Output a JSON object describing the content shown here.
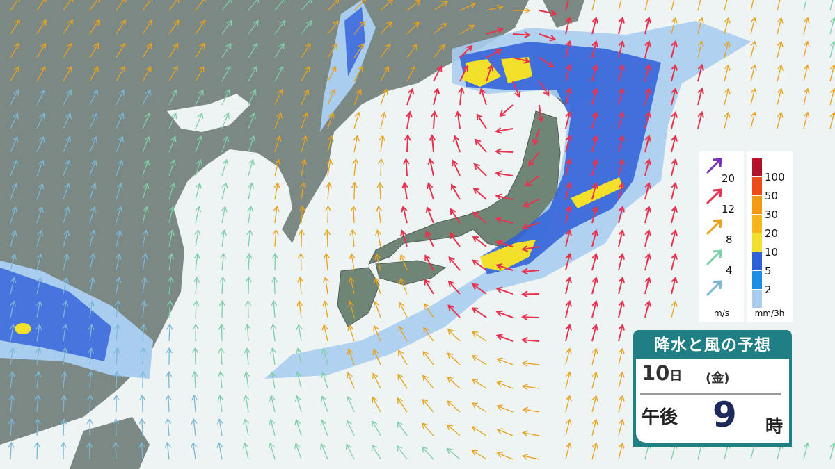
{
  "title": "降水と風の予想",
  "date": {
    "day": "10",
    "day_unit": "日",
    "weekday": "(金)"
  },
  "time": {
    "period": "午後",
    "hour": "9",
    "hour_unit": "時"
  },
  "wind_legend": {
    "unit": "m/s",
    "items": [
      {
        "label": "20",
        "color": "#7b2fb5"
      },
      {
        "label": "12",
        "color": "#e8334f"
      },
      {
        "label": "8",
        "color": "#e8a21c"
      },
      {
        "label": "4",
        "color": "#7fcfa8"
      },
      {
        "label": "",
        "color": "#7ab8d8"
      }
    ]
  },
  "rain_legend": {
    "unit": "mm/3h",
    "items": [
      {
        "label": "100",
        "color": "#b3122a"
      },
      {
        "label": "50",
        "color": "#ef4a1c"
      },
      {
        "label": "30",
        "color": "#f29a12"
      },
      {
        "label": "20",
        "color": "#f6b91a"
      },
      {
        "label": "10",
        "color": "#f2e02a"
      },
      {
        "label": "5",
        "color": "#2e5fd8"
      },
      {
        "label": "2",
        "color": "#1b8ee6"
      },
      {
        "label": "",
        "color": "#a8cdef"
      }
    ]
  },
  "colors": {
    "sea": "#eef3f4",
    "land": "#7b8884",
    "japan": "#6f8676",
    "panel": "#1f7f85"
  }
}
